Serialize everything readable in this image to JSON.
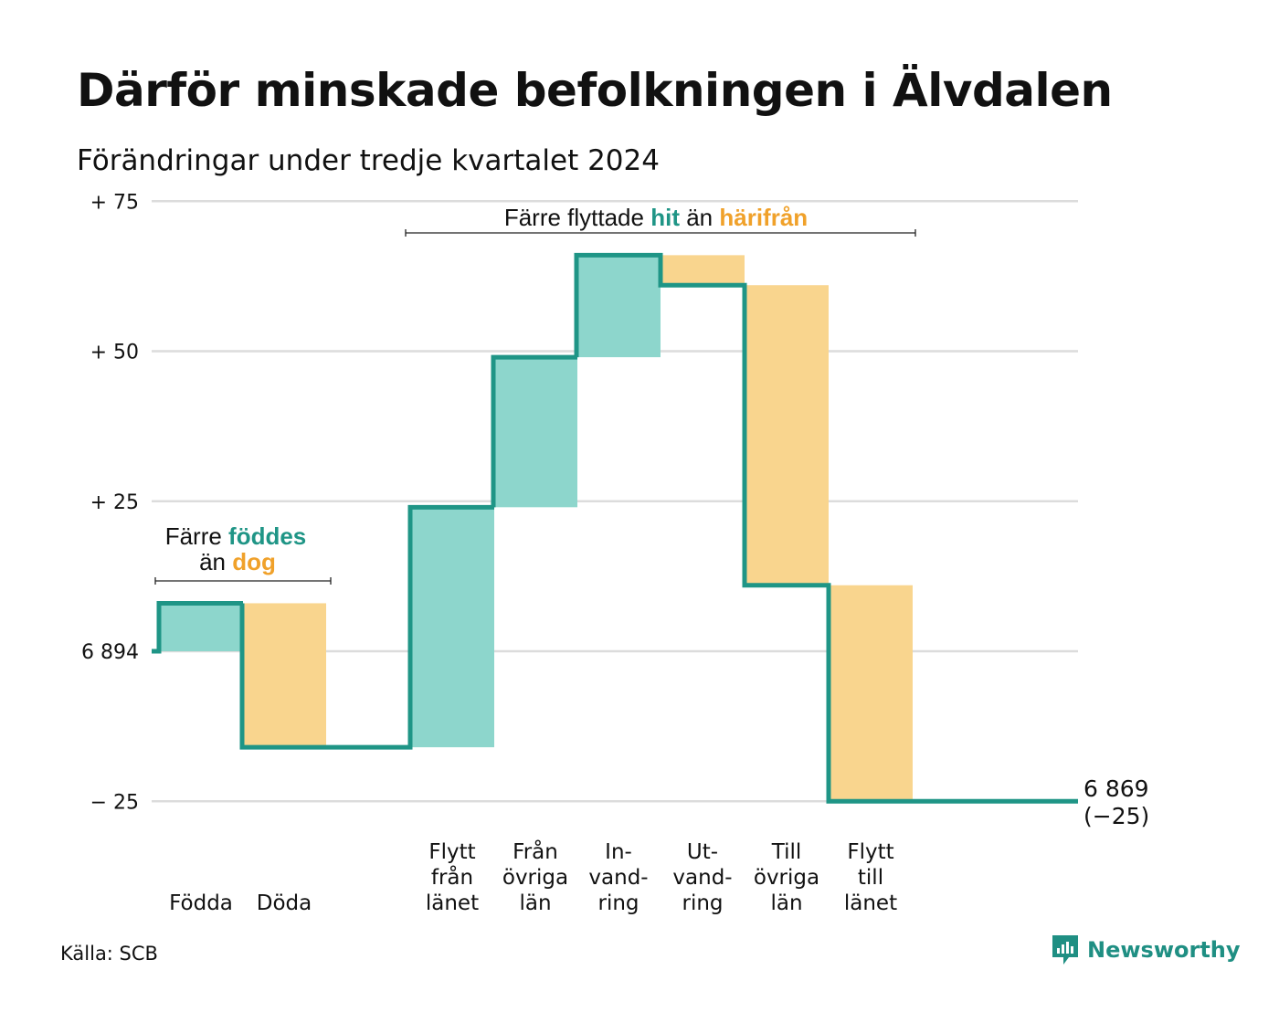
{
  "title": "Därför minskade befolkningen i Älvdalen",
  "subtitle": "Förändringar under tredje kvartalet 2024",
  "source": "Källa: SCB",
  "brand": "Newsworthy",
  "colors": {
    "line": "#1f9586",
    "increase": "#8dd6cc",
    "decrease": "#f9d58e",
    "accent_orange": "#f0a12a",
    "grid": "#dcdcdc"
  },
  "annotations": {
    "births": {
      "line1_prefix": "Färre ",
      "line1_hl": "föddes",
      "line2_prefix": "än ",
      "line2_hl": "dog"
    },
    "moves": {
      "prefix": "Färre flyttade ",
      "hl1": "hit",
      "mid": " än ",
      "hl2": "härifrån"
    }
  },
  "chart_data": {
    "type": "waterfall",
    "baseline": 6894,
    "y_ticks": [
      {
        "value": 75,
        "label": "+ 75"
      },
      {
        "value": 50,
        "label": "+ 50"
      },
      {
        "value": 25,
        "label": "+ 25"
      },
      {
        "value": 0,
        "label": "6 894"
      },
      {
        "value": -25,
        "label": "− 25"
      }
    ],
    "ylim": [
      -25,
      75
    ],
    "categories": [
      {
        "label": [
          "Födda"
        ],
        "change": 8
      },
      {
        "label": [
          "Döda"
        ],
        "change": -24
      },
      {
        "label": [],
        "change": 0
      },
      {
        "label": [
          "Flytt",
          "från",
          "länet"
        ],
        "change": 40
      },
      {
        "label": [
          "Från",
          "övriga",
          "län"
        ],
        "change": 25
      },
      {
        "label": [
          "In-",
          "vand-",
          "ring"
        ],
        "change": 17
      },
      {
        "label": [
          "Ut-",
          "vand-",
          "ring"
        ],
        "change": -5
      },
      {
        "label": [
          "Till",
          "övriga",
          "län"
        ],
        "change": -50
      },
      {
        "label": [
          "Flytt",
          "till",
          "länet"
        ],
        "change": -36
      }
    ],
    "end_value": "6 869",
    "end_change": "(−25)",
    "grid": true
  }
}
